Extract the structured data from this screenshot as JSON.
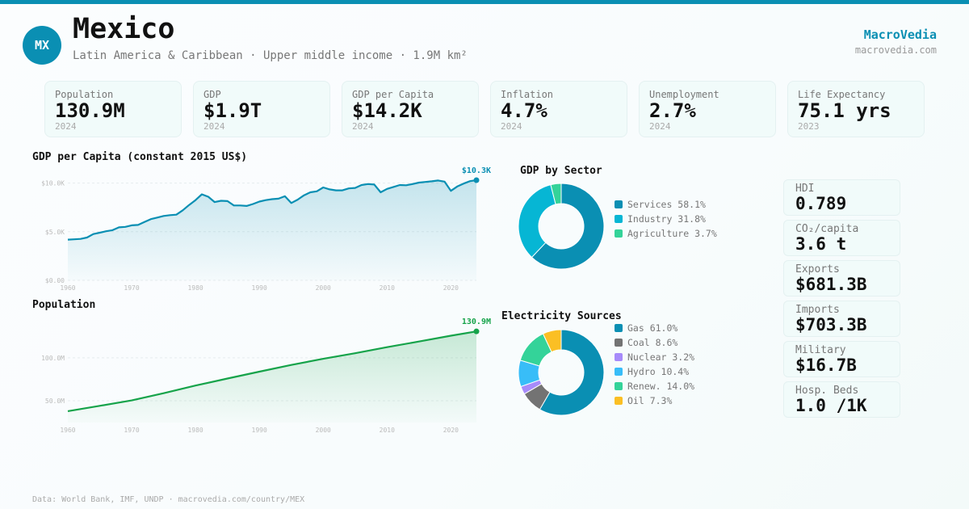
{
  "header": {
    "badge": "MX",
    "title": "Mexico",
    "subtitle": "Latin America & Caribbean · Upper middle income · 1.9M km²",
    "brand": "MacroVedia",
    "brand_url": "macrovedia.com",
    "accent": "#0a8fb3"
  },
  "stats": [
    {
      "label": "Population",
      "value": "130.9M",
      "year": "2024"
    },
    {
      "label": "GDP",
      "value": "$1.9T",
      "year": "2024"
    },
    {
      "label": "GDP per Capita",
      "value": "$14.2K",
      "year": "2024"
    },
    {
      "label": "Inflation",
      "value": "4.7%",
      "year": "2024"
    },
    {
      "label": "Unemployment",
      "value": "2.7%",
      "year": "2024"
    },
    {
      "label": "Life Expectancy",
      "value": "75.1 yrs",
      "year": "2023"
    }
  ],
  "side_stats": [
    {
      "label": "HDI",
      "value": "0.789"
    },
    {
      "label": "CO₂/capita",
      "value": "3.6 t"
    },
    {
      "label": "Exports",
      "value": "$681.3B"
    },
    {
      "label": "Imports",
      "value": "$703.3B"
    },
    {
      "label": "Military",
      "value": "$16.7B"
    },
    {
      "label": "Hosp. Beds",
      "value": "1.0 /1K"
    }
  ],
  "footer": "Data: World Bank, IMF, UNDP · macrovedia.com/country/MEX",
  "chart_data": [
    {
      "type": "area",
      "title": "GDP per Capita (constant 2015 US$)",
      "color": "#0a8fb3",
      "end_label": "$10.3K",
      "ytick_labels": [
        "$0.00",
        "$5.0K",
        "$10.0K"
      ],
      "yticks": [
        0,
        5,
        10
      ],
      "xtick_labels": [
        "1960",
        "1970",
        "1980",
        "1990",
        "2000",
        "2010",
        "2020"
      ],
      "ylim": [
        0,
        10.3
      ],
      "xlim": [
        1960,
        2024
      ],
      "y_unit": "thousand US$",
      "x": [
        1960,
        1961,
        1962,
        1963,
        1964,
        1965,
        1966,
        1967,
        1968,
        1969,
        1970,
        1971,
        1972,
        1973,
        1974,
        1975,
        1976,
        1977,
        1978,
        1979,
        1980,
        1981,
        1982,
        1983,
        1984,
        1985,
        1986,
        1987,
        1988,
        1989,
        1990,
        1991,
        1992,
        1993,
        1994,
        1995,
        1996,
        1997,
        1998,
        1999,
        2000,
        2001,
        2002,
        2003,
        2004,
        2005,
        2006,
        2007,
        2008,
        2009,
        2010,
        2011,
        2012,
        2013,
        2014,
        2015,
        2016,
        2017,
        2018,
        2019,
        2020,
        2021,
        2022,
        2023,
        2024
      ],
      "y": [
        4.19,
        4.22,
        4.26,
        4.4,
        4.76,
        4.9,
        5.05,
        5.16,
        5.45,
        5.5,
        5.66,
        5.7,
        6.0,
        6.3,
        6.45,
        6.62,
        6.7,
        6.75,
        7.2,
        7.75,
        8.25,
        8.85,
        8.6,
        8.05,
        8.18,
        8.15,
        7.7,
        7.7,
        7.65,
        7.85,
        8.1,
        8.25,
        8.35,
        8.4,
        8.65,
        7.95,
        8.3,
        8.75,
        9.05,
        9.15,
        9.55,
        9.35,
        9.25,
        9.25,
        9.45,
        9.5,
        9.8,
        9.9,
        9.85,
        9.05,
        9.4,
        9.6,
        9.8,
        9.78,
        9.9,
        10.05,
        10.12,
        10.18,
        10.27,
        10.15,
        9.2,
        9.65,
        9.95,
        10.2,
        10.3
      ]
    },
    {
      "type": "area",
      "title": "Population",
      "color": "#16a34a",
      "end_label": "130.9M",
      "ytick_labels": [
        "50.0M",
        "100.0M"
      ],
      "yticks": [
        50,
        100
      ],
      "xtick_labels": [
        "1960",
        "1970",
        "1980",
        "1990",
        "2000",
        "2010",
        "2020"
      ],
      "ylim": [
        24.5,
        132
      ],
      "xlim": [
        1960,
        2024
      ],
      "y_unit": "million",
      "x": [
        1960,
        1965,
        1970,
        1975,
        1980,
        1985,
        1990,
        1995,
        2000,
        2005,
        2010,
        2015,
        2020,
        2024
      ],
      "y": [
        37.8,
        44.0,
        50.3,
        58.7,
        67.7,
        75.9,
        83.9,
        91.7,
        98.9,
        105.4,
        112.5,
        119.1,
        125.9,
        130.9
      ]
    },
    {
      "type": "pie",
      "title": "GDP by Sector",
      "donut": true,
      "slices": [
        {
          "label": "Services 58.1%",
          "value": 58.1,
          "color": "#0a8fb3"
        },
        {
          "label": "Industry 31.8%",
          "value": 31.8,
          "color": "#06b6d4"
        },
        {
          "label": "Agriculture 3.7%",
          "value": 3.7,
          "color": "#34d399"
        }
      ]
    },
    {
      "type": "pie",
      "title": "Electricity Sources",
      "donut": true,
      "slices": [
        {
          "label": "Gas 61.0%",
          "value": 61.0,
          "color": "#0a8fb3"
        },
        {
          "label": "Coal 8.6%",
          "value": 8.6,
          "color": "#737373"
        },
        {
          "label": "Nuclear 3.2%",
          "value": 3.2,
          "color": "#a78bfa"
        },
        {
          "label": "Hydro 10.4%",
          "value": 10.4,
          "color": "#38bdf8"
        },
        {
          "label": "Renew. 14.0%",
          "value": 14.0,
          "color": "#34d399"
        },
        {
          "label": "Oil 7.3%",
          "value": 7.3,
          "color": "#fbbf24"
        }
      ]
    }
  ]
}
